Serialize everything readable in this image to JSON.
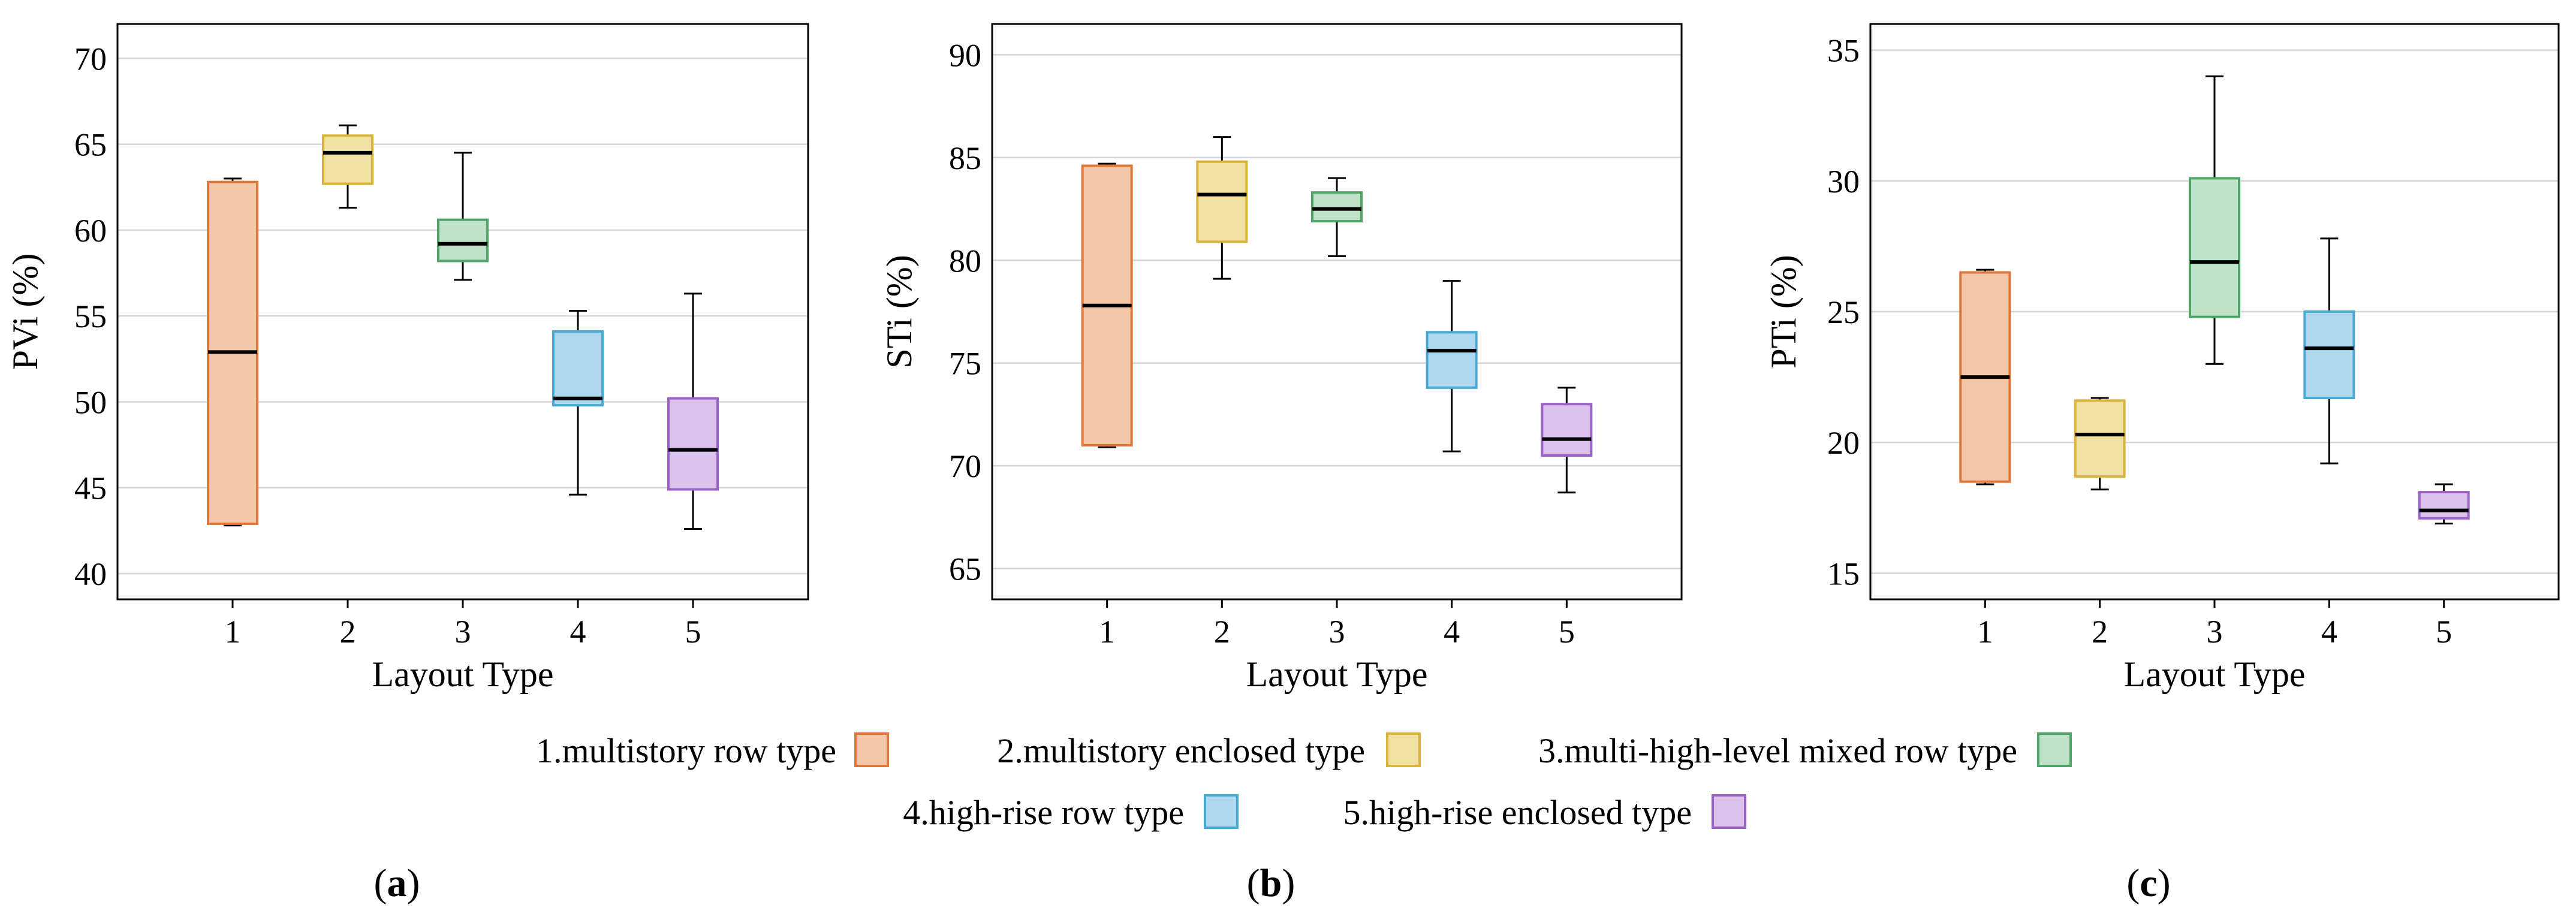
{
  "legend": {
    "items": [
      {
        "label": "1.multistory row type",
        "fill": "#f4c7a8",
        "stroke": "#e0773a"
      },
      {
        "label": "2.multistory enclosed type",
        "fill": "#f1e0a4",
        "stroke": "#d8b43a"
      },
      {
        "label": "3.multi-high-level mixed row type",
        "fill": "#bfe2c8",
        "stroke": "#4ea565"
      },
      {
        "label": "4.high-rise row type",
        "fill": "#add8ee",
        "stroke": "#4aaad6"
      },
      {
        "label": "5.high-rise enclosed type",
        "fill": "#dcc2ea",
        "stroke": "#9a62c8"
      }
    ]
  },
  "chart_data": [
    {
      "type": "box",
      "panel_label": "a",
      "xlabel": "Layout Type",
      "ylabel": "PVi (%)",
      "categories": [
        "1",
        "2",
        "3",
        "4",
        "5"
      ],
      "ylim": [
        38.5,
        72
      ],
      "yticks": [
        40,
        45,
        50,
        55,
        60,
        65,
        70
      ],
      "grid": true,
      "boxes": [
        {
          "min": 42.8,
          "q1": 42.9,
          "median": 52.9,
          "q3": 62.8,
          "max": 63.0
        },
        {
          "min": 61.3,
          "q1": 62.7,
          "median": 64.5,
          "q3": 65.5,
          "max": 66.1
        },
        {
          "min": 57.1,
          "q1": 58.2,
          "median": 59.2,
          "q3": 60.6,
          "max": 64.5
        },
        {
          "min": 44.6,
          "q1": 49.8,
          "median": 50.2,
          "q3": 54.1,
          "max": 55.3
        },
        {
          "min": 42.6,
          "q1": 44.9,
          "median": 47.2,
          "q3": 50.2,
          "max": 56.3
        }
      ]
    },
    {
      "type": "box",
      "panel_label": "b",
      "xlabel": "Layout Type",
      "ylabel": "STi (%)",
      "categories": [
        "1",
        "2",
        "3",
        "4",
        "5"
      ],
      "ylim": [
        63.5,
        91.5
      ],
      "yticks": [
        65,
        70,
        75,
        80,
        85,
        90
      ],
      "grid": true,
      "boxes": [
        {
          "min": 70.9,
          "q1": 71.0,
          "median": 77.8,
          "q3": 84.6,
          "max": 84.7
        },
        {
          "min": 79.1,
          "q1": 80.9,
          "median": 83.2,
          "q3": 84.8,
          "max": 86.0
        },
        {
          "min": 80.2,
          "q1": 81.9,
          "median": 82.5,
          "q3": 83.3,
          "max": 84.0
        },
        {
          "min": 70.7,
          "q1": 73.8,
          "median": 75.6,
          "q3": 76.5,
          "max": 79.0
        },
        {
          "min": 68.7,
          "q1": 70.5,
          "median": 71.3,
          "q3": 73.0,
          "max": 73.8
        }
      ]
    },
    {
      "type": "box",
      "panel_label": "c",
      "xlabel": "Layout Type",
      "ylabel": "PTi (%)",
      "categories": [
        "1",
        "2",
        "3",
        "4",
        "5"
      ],
      "ylim": [
        14,
        36
      ],
      "yticks": [
        15,
        20,
        25,
        30,
        35
      ],
      "grid": true,
      "boxes": [
        {
          "min": 18.4,
          "q1": 18.5,
          "median": 22.5,
          "q3": 26.5,
          "max": 26.6
        },
        {
          "min": 18.2,
          "q1": 18.7,
          "median": 20.3,
          "q3": 21.6,
          "max": 21.7
        },
        {
          "min": 23.0,
          "q1": 24.8,
          "median": 26.9,
          "q3": 30.1,
          "max": 34.0
        },
        {
          "min": 19.2,
          "q1": 21.7,
          "median": 23.6,
          "q3": 25.0,
          "max": 27.8
        },
        {
          "min": 16.9,
          "q1": 17.1,
          "median": 17.4,
          "q3": 18.1,
          "max": 18.4
        }
      ]
    }
  ]
}
